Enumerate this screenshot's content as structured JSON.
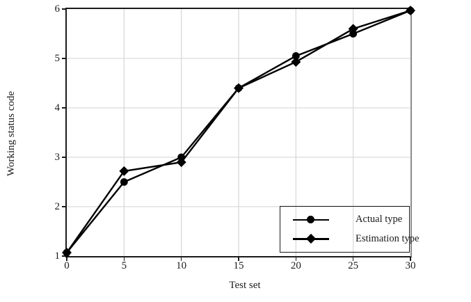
{
  "chart_data": {
    "type": "line",
    "title": "",
    "xlabel": "Test set",
    "ylabel": "Working status code",
    "x": [
      0,
      5,
      10,
      15,
      20,
      25,
      30
    ],
    "series": [
      {
        "name": "Actual type",
        "marker": "circle",
        "color": "#000000",
        "values": [
          1.07,
          2.5,
          3.0,
          4.4,
          5.05,
          5.5,
          5.97
        ]
      },
      {
        "name": "Estimation type",
        "marker": "diamond",
        "color": "#000000",
        "values": [
          1.07,
          2.72,
          2.9,
          4.4,
          4.93,
          5.6,
          5.97
        ]
      }
    ],
    "xlim": [
      0,
      30
    ],
    "ylim": [
      1,
      6
    ],
    "x_ticks": [
      0,
      5,
      10,
      15,
      20,
      25,
      30
    ],
    "y_ticks": [
      1,
      2,
      3,
      4,
      5,
      6
    ],
    "grid": true,
    "legend_position": "bottom-right"
  },
  "legend": {
    "items": [
      {
        "label": "Actual type",
        "marker": "circle"
      },
      {
        "label": "Estimation type",
        "marker": "diamond"
      }
    ]
  },
  "colors": {
    "line": "#000000",
    "grid": "#d9d9d9",
    "axis": "#1a1a1a",
    "right_border": "#8c8c8c",
    "background": "#ffffff"
  }
}
